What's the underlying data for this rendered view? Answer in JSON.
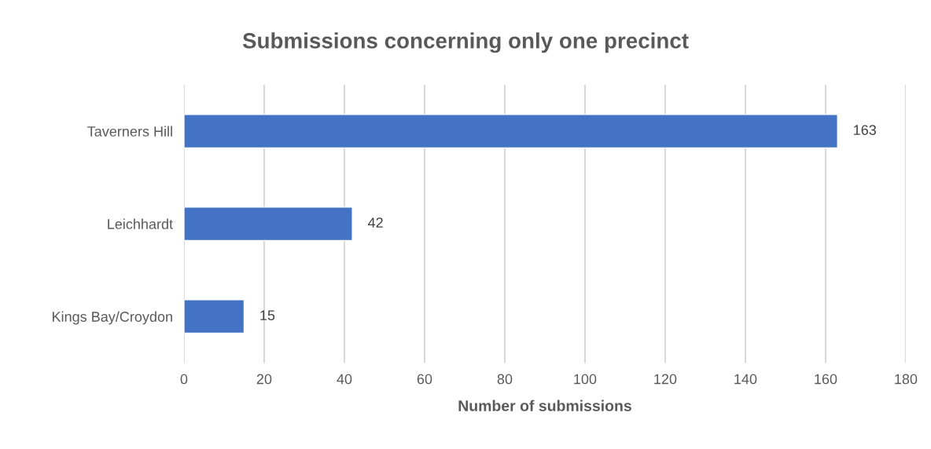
{
  "chart_data": {
    "type": "bar",
    "orientation": "horizontal",
    "title": "Submissions concerning only one precinct",
    "xlabel": "Number of submissions",
    "categories": [
      "Taverners Hill",
      "Leichhardt",
      "Kings Bay/Croydon"
    ],
    "values": [
      163,
      42,
      15
    ],
    "color": "#4472c4",
    "xlim": [
      0,
      180
    ],
    "xticks": [
      0,
      20,
      40,
      60,
      80,
      100,
      120,
      140,
      160,
      180
    ],
    "grid": "x",
    "data_labels": true
  }
}
